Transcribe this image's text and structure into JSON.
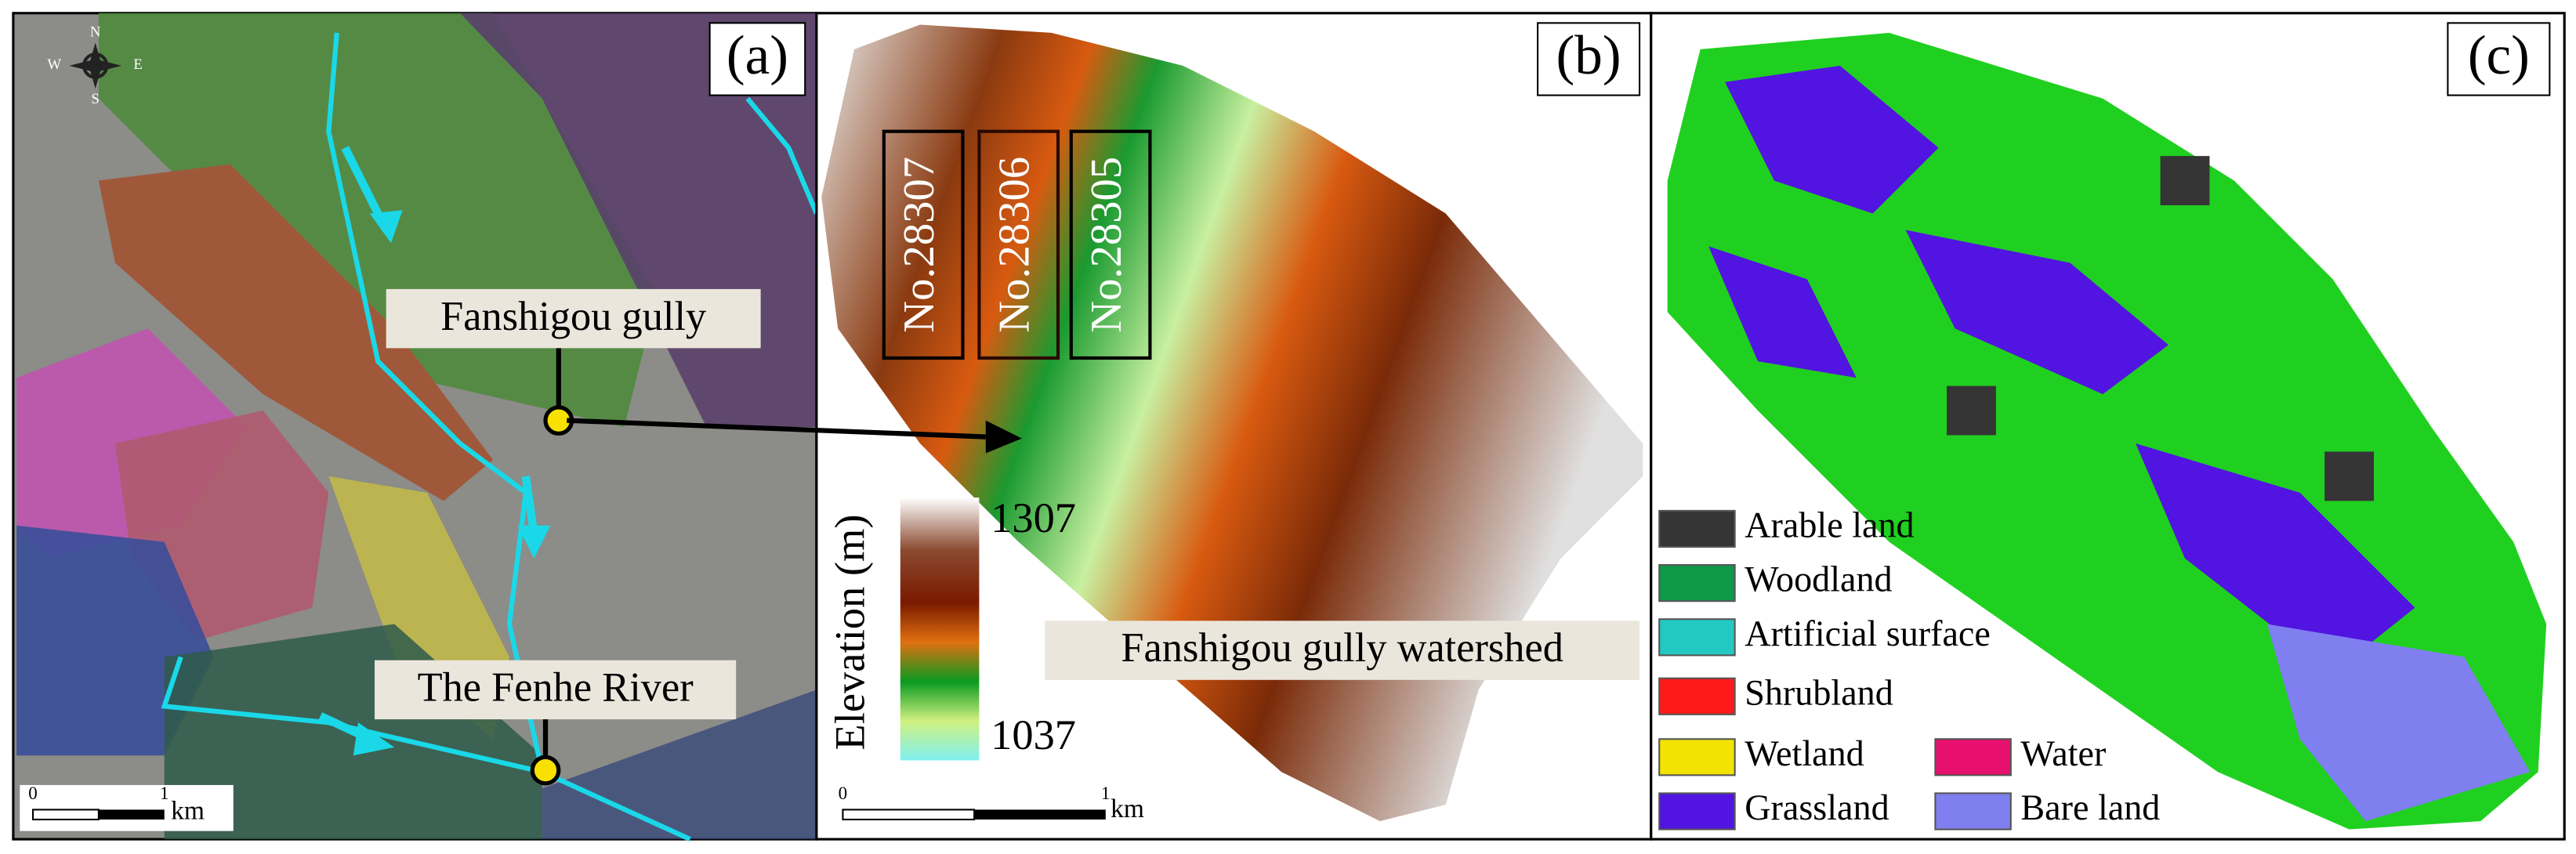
{
  "panels": [
    {
      "label": "(a)",
      "compass": {
        "n": "N",
        "s": "S",
        "e": "E",
        "w": "W"
      },
      "annotations": [
        "Fanshigou gully",
        "The Fenhe River"
      ],
      "scale_bar": {
        "start": "0",
        "end": "1",
        "unit": "km"
      }
    },
    {
      "label": "(b)",
      "mines": [
        "No.28307",
        "No.28306",
        "No.28305"
      ],
      "colorbar": {
        "title": "Elevation (m)",
        "max": 1307,
        "min": 1037
      },
      "annotation": "Fanshigou gully watershed",
      "scale_bar": {
        "start": "0",
        "end": "1",
        "unit": "km"
      }
    },
    {
      "label": "(c)",
      "legend": [
        {
          "label": "Arable land",
          "color": "#353535"
        },
        {
          "label": "Woodland",
          "color": "#0f9a48"
        },
        {
          "label": "Artificial surface",
          "color": "#22c9c3"
        },
        {
          "label": "Shrubland",
          "color": "#ff1a1a"
        },
        {
          "label": "Wetland",
          "color": "#f2e400"
        },
        {
          "label": "Grassland",
          "color": "#5214e0"
        },
        {
          "label": "Water",
          "color": "#e8106e"
        },
        {
          "label": "Bare land",
          "color": "#7f7ff0"
        }
      ]
    }
  ]
}
